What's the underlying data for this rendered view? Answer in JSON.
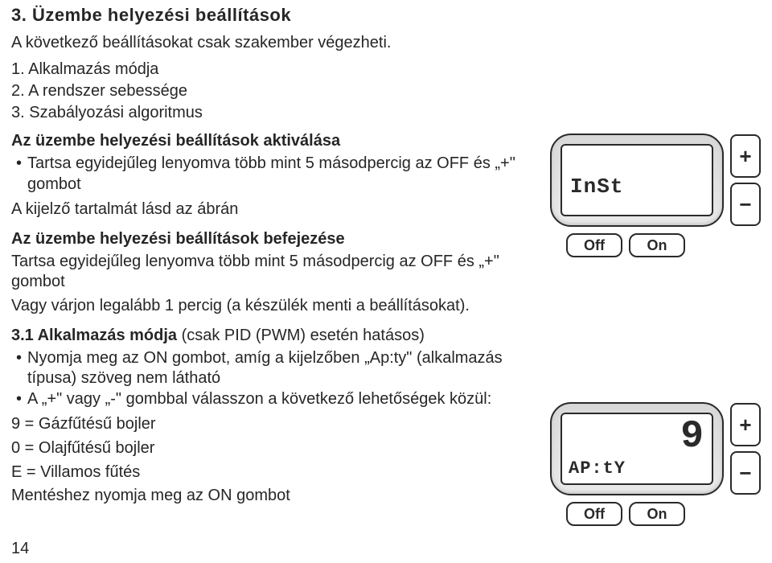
{
  "section_title": "3. Üzembe helyezési beállítások",
  "intro": "A következő beállításokat csak szakember végezheti.",
  "numbered": [
    "1. Alkalmazás módja",
    "2. A rendszer sebessége",
    "3. Szabályozási algoritmus"
  ],
  "activate_head": "Az üzembe helyezési beállítások aktiválása",
  "activate_bullets": [
    "Tartsa egyidejűleg lenyomva több mint 5 másodpercig az OFF és „+\" gombot"
  ],
  "activate_line": "A kijelző tartalmát lásd az ábrán",
  "finish_head": "Az üzembe helyezési beállítások befejezése",
  "finish_line1": "Tartsa egyidejűleg lenyomva több mint 5 másodpercig az OFF és „+\" gombot",
  "finish_line2": "Vagy várjon legalább 1 percig (a készülék menti a beállításokat).",
  "sec31_head_bold": "3.1 Alkalmazás módja",
  "sec31_head_rest": " (csak PID (PWM) esetén hatásos)",
  "sec31_bullets": [
    "Nyomja meg az ON gombot, amíg a kijelzőben „Ap:ty\" (alkalmazás típusa) szöveg nem látható",
    "A „+\" vagy „-\" gombbal válasszon a következő lehetőségek közül:"
  ],
  "options": [
    "9 = Gázfűtésű bojler",
    "0 = Olajfűtésű bojler",
    "E = Villamos fűtés"
  ],
  "save_line": "Mentéshez nyomja meg az ON gombot",
  "page_num": "14",
  "device1": {
    "lcd_main_small": "InSt",
    "btn_off": "Off",
    "btn_on": "On",
    "plus": "+",
    "minus": "−"
  },
  "device2": {
    "lcd_main": "9",
    "lcd_small": "AP:tY",
    "btn_off": "Off",
    "btn_on": "On",
    "plus": "+",
    "minus": "−"
  }
}
